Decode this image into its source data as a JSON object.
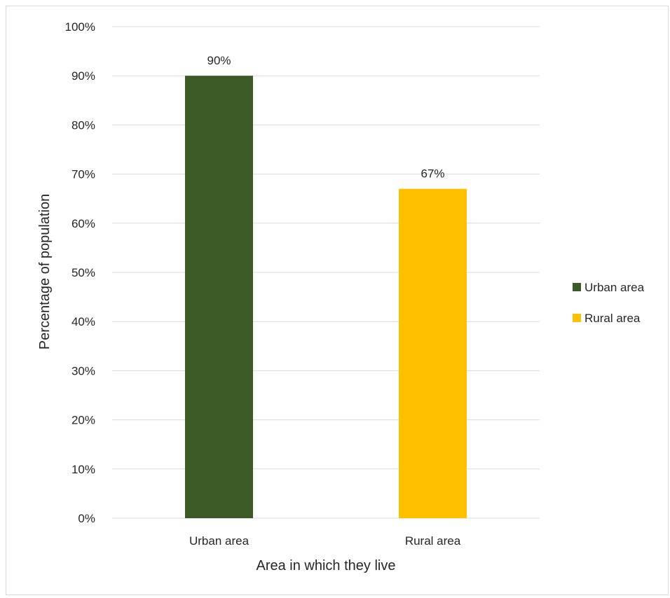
{
  "chart_data": {
    "type": "bar",
    "categories": [
      "Urban area",
      "Rural area"
    ],
    "series": [
      {
        "name": "Urban area",
        "values": [
          90,
          null
        ],
        "color": "#3b5a26"
      },
      {
        "name": "Rural area",
        "values": [
          null,
          67
        ],
        "color": "#ffc000"
      }
    ],
    "values": [
      90,
      67
    ],
    "data_labels": [
      "90%",
      "67%"
    ],
    "xlabel": "Area in which they live",
    "ylabel": "Percentage of population",
    "ylim": [
      0,
      100
    ],
    "yticks": [
      "0%",
      "10%",
      "20%",
      "30%",
      "40%",
      "50%",
      "60%",
      "70%",
      "80%",
      "90%",
      "100%"
    ],
    "grid": true,
    "legend_position": "right",
    "legend": [
      {
        "label": "Urban area",
        "color": "#3b5a26"
      },
      {
        "label": "Rural area",
        "color": "#ffc000"
      }
    ]
  }
}
